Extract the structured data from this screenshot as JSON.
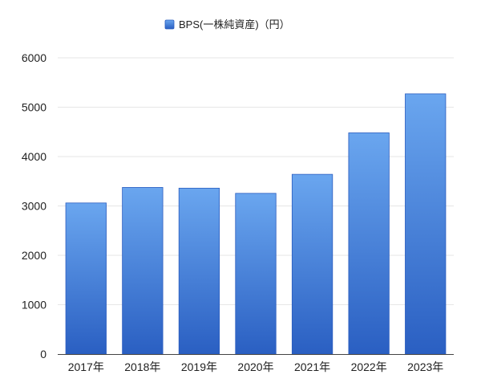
{
  "chart_data": {
    "type": "bar",
    "categories": [
      "2017年",
      "2018年",
      "2019年",
      "2020年",
      "2021年",
      "2022年",
      "2023年"
    ],
    "series": [
      {
        "name": "BPS(一株純資産)（円）",
        "values": [
          3060,
          3375,
          3360,
          3255,
          3640,
          4480,
          5270
        ]
      }
    ],
    "ylim": [
      0,
      6000
    ],
    "yticks": [
      0,
      1000,
      2000,
      3000,
      4000,
      5000,
      6000
    ],
    "grid": true,
    "legend_position": "top-center",
    "colors": {
      "bar_top": "#6aa6ef",
      "bar_bottom": "#2a5fc2",
      "bar_stroke": "#2a5cbf",
      "grid": "#e6e6e6",
      "axis": "#444444"
    }
  }
}
